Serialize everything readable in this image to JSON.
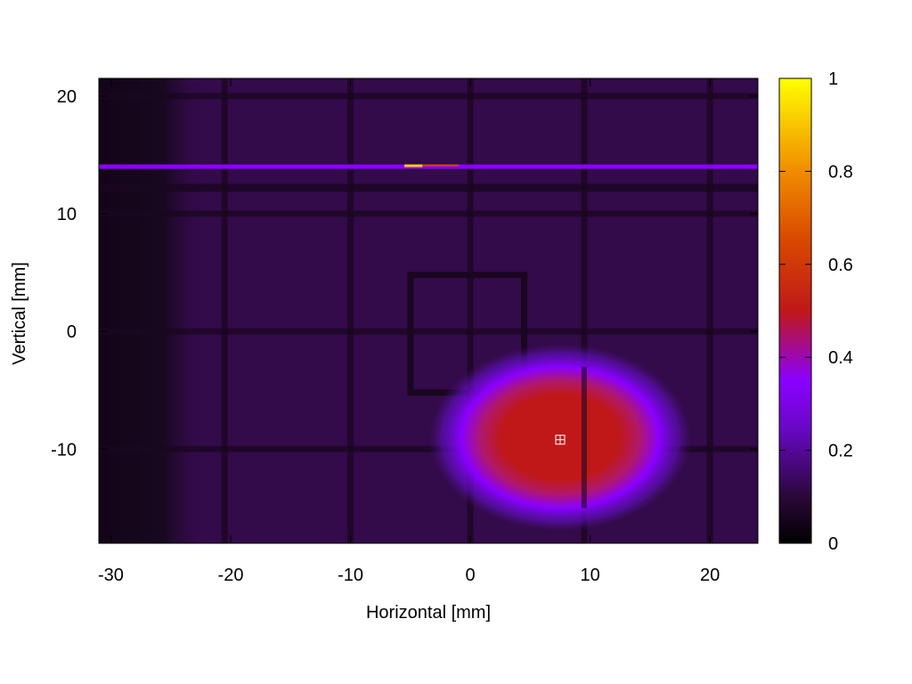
{
  "chart_data": {
    "type": "heatmap",
    "title": "",
    "xlabel": "Horizontal [mm]",
    "ylabel": "Vertical [mm]",
    "xlim": [
      -31,
      24
    ],
    "ylim": [
      -18,
      21.5
    ],
    "x_ticks": [
      -30,
      -20,
      -10,
      0,
      10,
      20
    ],
    "y_ticks": [
      -10,
      0,
      10,
      20
    ],
    "colorbar": {
      "range": [
        0,
        1
      ],
      "ticks": [
        0,
        0.2,
        0.4,
        0.6,
        0.8,
        1
      ],
      "palette": [
        "#000000",
        "#3a0a5e",
        "#8a00ff",
        "#c01818",
        "#e87800",
        "#ffff00"
      ]
    },
    "grid_lines_x": [
      -20.5,
      -10,
      0,
      9.5,
      20
    ],
    "grid_lines_y": [
      -10,
      0,
      10,
      20
    ],
    "beam_spot": {
      "x": 7.5,
      "y": -9,
      "sigma_x": 5.5,
      "sigma_y": 4,
      "peak": 0.5
    },
    "bright_band": {
      "y": 14,
      "x_from": -31,
      "x_to": 24,
      "level": 0.28
    },
    "bright_band_hotspot": {
      "x_from": -5.5,
      "x_to": -4,
      "level": 1
    },
    "dark_rect": {
      "x": [
        -5,
        4.5
      ],
      "y": [
        -5.2,
        4.8
      ]
    },
    "marker": {
      "x": 7.5,
      "y": -9.2,
      "symbol": "boxed-cross"
    },
    "background_level": 0.1
  }
}
